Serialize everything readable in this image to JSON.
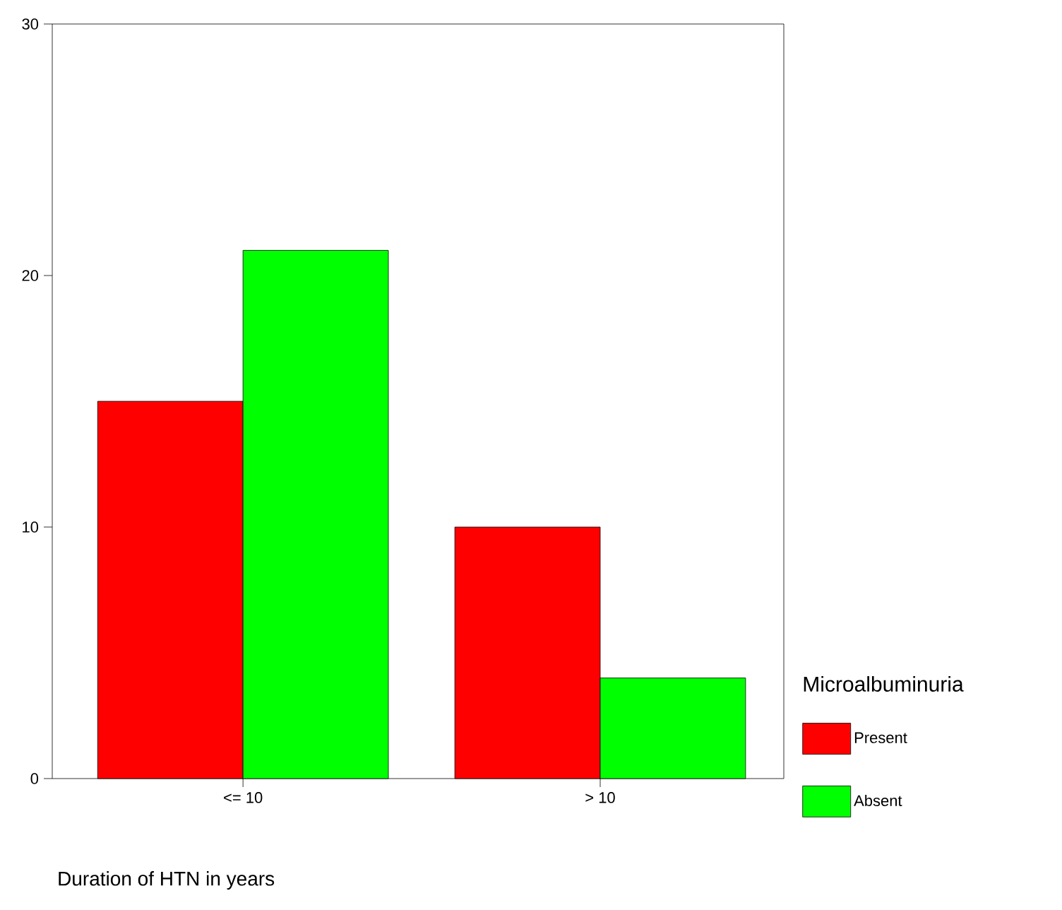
{
  "chart_data": {
    "type": "bar",
    "xlabel": "Duration of HTN in years",
    "legend_title": "Microalbuminuria",
    "categories": [
      "<= 10",
      "> 10"
    ],
    "series": [
      {
        "name": "Present",
        "color": "#ff0000",
        "values": [
          15,
          10
        ]
      },
      {
        "name": "Absent",
        "color": "#00ff00",
        "values": [
          21,
          4
        ]
      }
    ],
    "ylim": [
      0,
      30
    ],
    "yticks": [
      0,
      10,
      20,
      30
    ],
    "grid": false,
    "legend": "right"
  }
}
